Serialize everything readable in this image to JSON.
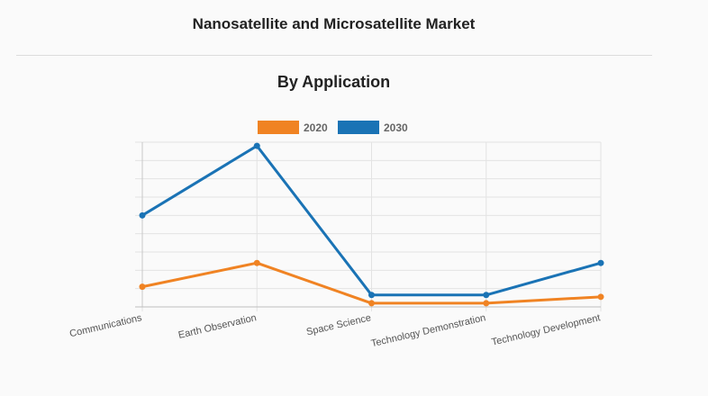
{
  "header": {
    "title": "Nanosatellite and Microsatellite Market"
  },
  "chart_data": {
    "type": "line",
    "title": "By Application",
    "xlabel": "",
    "ylabel": "",
    "categories": [
      "Communications",
      "Earth Observation",
      "Space Science",
      "Technology Demonstration",
      "Technology Development"
    ],
    "series": [
      {
        "name": "2020",
        "color": "#f08323",
        "values": [
          1.1,
          2.4,
          0.2,
          0.2,
          0.55
        ]
      },
      {
        "name": "2030",
        "color": "#1a73b5",
        "values": [
          5.0,
          8.8,
          0.65,
          0.65,
          2.4
        ]
      }
    ],
    "ylim": [
      0,
      9
    ],
    "grid": true,
    "legend": "top-center"
  }
}
